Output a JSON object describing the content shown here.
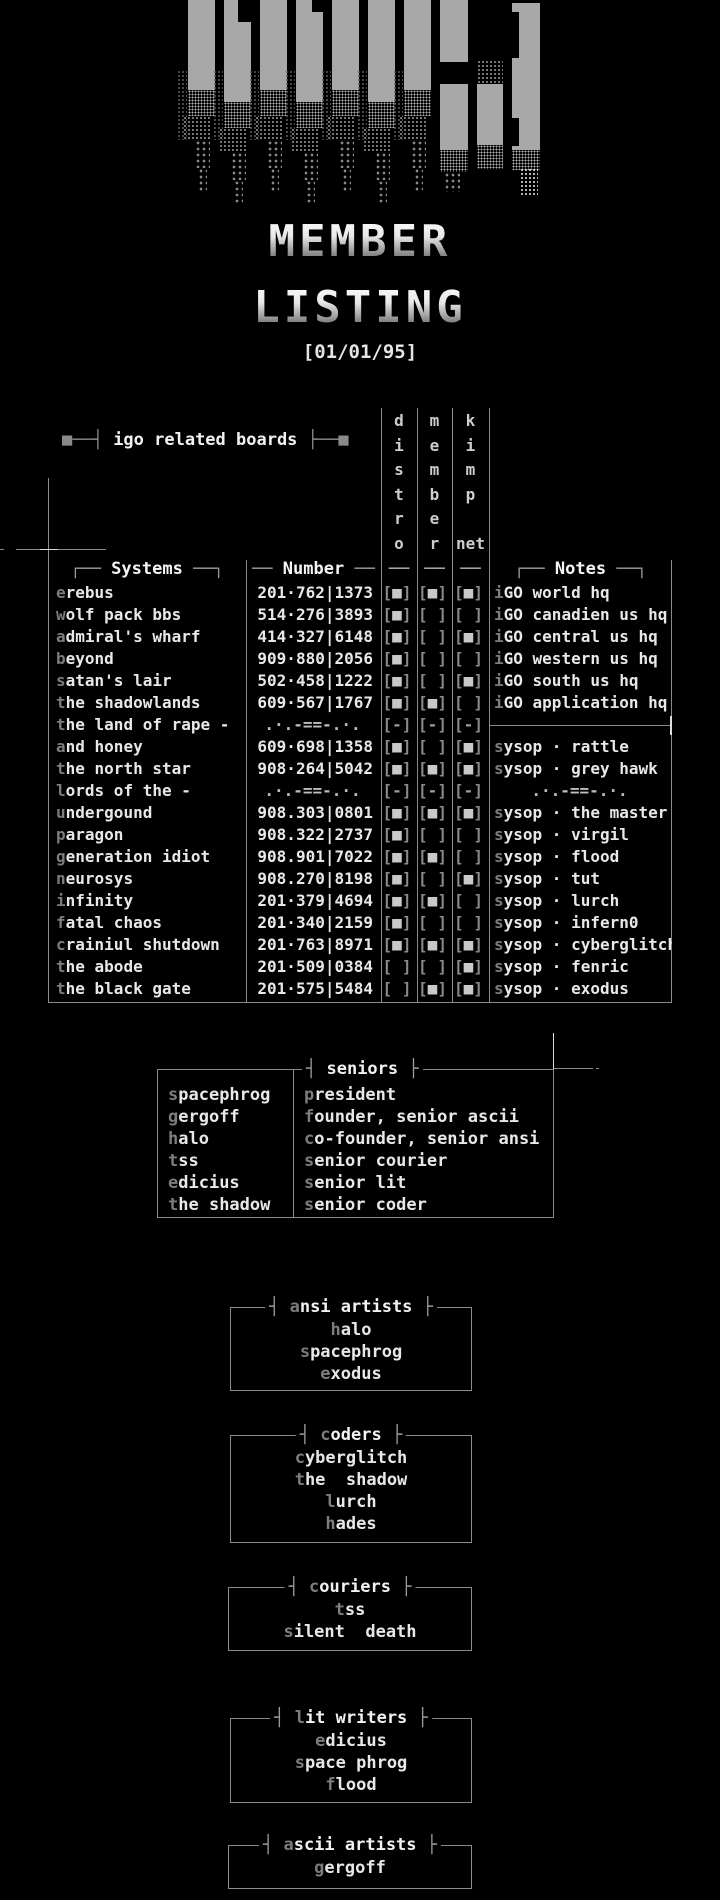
{
  "page": {
    "name": "igo member listing"
  },
  "logo": {
    "icon": "igo-ascii-logo"
  },
  "header": {
    "title_line1": "MEMBER",
    "title_line2": "LISTING",
    "date": "[01/01/95]"
  },
  "related_boards": {
    "decor_left": "■──┤ ",
    "title": "igo related boards",
    "decor_right": " ├──■",
    "vertical_columns": [
      "distro",
      "member",
      "kimp"
    ],
    "kimpnet_suffix": "net"
  },
  "table": {
    "headers": {
      "systems": "Systems",
      "number": "Number",
      "notes": "Notes",
      "narrow_dash": "──"
    },
    "glyphs": {
      "on": "■",
      "off": " ",
      "dash": "-",
      "bracket_l": "[",
      "bracket_r": "]"
    },
    "rows": [
      {
        "system": "erebus",
        "number": "201·762|1373",
        "d": "on",
        "m": "on",
        "k": "on",
        "note": "iGO world hq"
      },
      {
        "system": "wolf pack bbs",
        "number": "514·276|3893",
        "d": "on",
        "m": "off",
        "k": "off",
        "note": "iGO canadien us hq"
      },
      {
        "system": "admiral's wharf",
        "number": "414·327|6148",
        "d": "on",
        "m": "off",
        "k": "on",
        "note": "iGO central us hq"
      },
      {
        "system": "beyond",
        "number": "909·880|2056",
        "d": "on",
        "m": "off",
        "k": "off",
        "note": "iGO western us hq"
      },
      {
        "system": "satan's lair",
        "number": "502·458|1222",
        "d": "on",
        "m": "off",
        "k": "on",
        "note": "iGO south us hq"
      },
      {
        "system": "the shadowlands",
        "number": "609·567|1767",
        "d": "on",
        "m": "on",
        "k": "off",
        "note": "iGO application hq"
      },
      {
        "system": "the land of rape -",
        "number": ".·.-==-.·.",
        "d": "dash",
        "m": "dash",
        "k": "dash",
        "note": "",
        "number_is_separator": true,
        "note_divider": true
      },
      {
        "system": "and honey",
        "number": "609·698|1358",
        "d": "on",
        "m": "off",
        "k": "on",
        "note": "sysop · rattle"
      },
      {
        "system": "the north star",
        "number": "908·264|5042",
        "d": "on",
        "m": "on",
        "k": "on",
        "note": "sysop · grey hawk"
      },
      {
        "system": "lords of the -",
        "number": ".·.-==-.·.",
        "d": "dash",
        "m": "dash",
        "k": "dash",
        "note": ".·.-==-.·.",
        "number_is_separator": true,
        "note_is_separator": true
      },
      {
        "system": "undergound",
        "number": "908.303|0801",
        "d": "on",
        "m": "on",
        "k": "on",
        "note": "sysop · the master"
      },
      {
        "system": "paragon",
        "number": "908.322|2737",
        "d": "on",
        "m": "off",
        "k": "off",
        "note": "sysop · virgil"
      },
      {
        "system": "generation idiot",
        "number": "908.901|7022",
        "d": "on",
        "m": "on",
        "k": "off",
        "note": "sysop · flood"
      },
      {
        "system": "neurosys",
        "number": "908.270|8198",
        "d": "on",
        "m": "off",
        "k": "on",
        "note": "sysop · tut"
      },
      {
        "system": "infinity",
        "number": "201·379|4694",
        "d": "on",
        "m": "on",
        "k": "off",
        "note": "sysop · lurch"
      },
      {
        "system": "fatal chaos",
        "number": "201·340|2159",
        "d": "on",
        "m": "off",
        "k": "off",
        "note": "sysop · infern0"
      },
      {
        "system": "crainiul shutdown",
        "number": "201·763|8971",
        "d": "on",
        "m": "on",
        "k": "on",
        "note": "sysop · cyberglitch"
      },
      {
        "system": "the abode",
        "number": "201·509|0384",
        "d": "off",
        "m": "off",
        "k": "on",
        "note": "sysop · fenric"
      },
      {
        "system": "the black gate",
        "number": "201·575|5484",
        "d": "off",
        "m": "on",
        "k": "on",
        "note": "sysop · exodus"
      }
    ]
  },
  "seniors": {
    "title": "seniors",
    "names": [
      "spacephrog",
      "gergoff",
      "halo",
      "tss",
      "edicius",
      "the shadow"
    ],
    "roles": [
      "president",
      "founder, senior ascii",
      "co-founder, senior ansi",
      "senior courier",
      "senior lit",
      "senior coder"
    ]
  },
  "sections": [
    {
      "title": "ansi artists",
      "members": [
        "halo",
        "spacephrog",
        "exodus"
      ]
    },
    {
      "title": "coders",
      "members": [
        "cyberglitch",
        "the  shadow",
        "lurch",
        "hades"
      ]
    },
    {
      "title": "couriers",
      "members": [
        "tss",
        "silent  death"
      ]
    },
    {
      "title": "lit writers",
      "members": [
        "edicius",
        "space phrog",
        "flood"
      ]
    },
    {
      "title": "ascii artists",
      "members": [
        "gergoff"
      ]
    }
  ],
  "colors": {
    "background": "#000000",
    "text": "#e8e8e8",
    "dim": "#7d7d7d",
    "line": "#8a8a8a",
    "logo_bar": "#a8a8a8",
    "checkbox_block": "#c9c9c9"
  }
}
